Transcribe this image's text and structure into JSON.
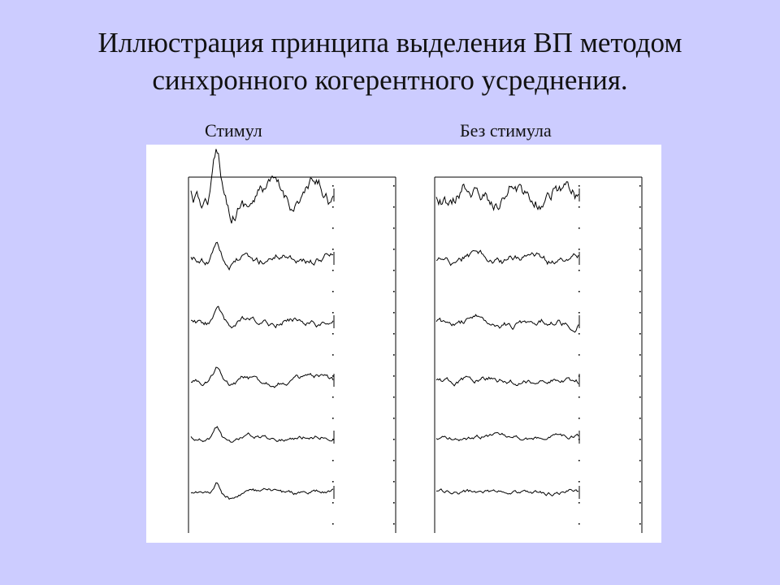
{
  "slide": {
    "title_line1": "Иллюстрация принципа выделения ВП методом",
    "title_line2": "синхронного когерентного усреднения."
  },
  "panels": {
    "left_label": "Стимул",
    "right_label": "Без стимула"
  },
  "colors": {
    "background": "#ccccff",
    "figure_background": "#ffffff",
    "trace": "#000000"
  },
  "traces": {
    "left_count": 6,
    "right_count": 6
  }
}
